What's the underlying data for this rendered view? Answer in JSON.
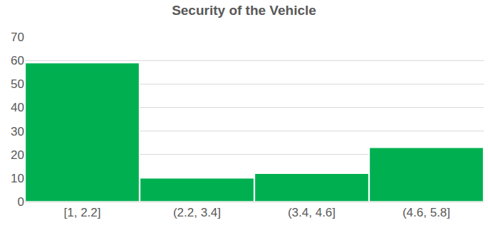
{
  "chart_data": {
    "type": "bar",
    "title": "Security of the Vehicle",
    "categories": [
      "[1, 2.2]",
      "(2.2, 3.4]",
      "(3.4, 4.6]",
      "(4.6, 5.8]"
    ],
    "values": [
      59,
      10,
      12,
      23
    ],
    "color": "#00b050",
    "ylim": [
      0,
      70
    ],
    "yticks": [
      0,
      10,
      20,
      30,
      40,
      50,
      60,
      70
    ],
    "grid": true
  }
}
